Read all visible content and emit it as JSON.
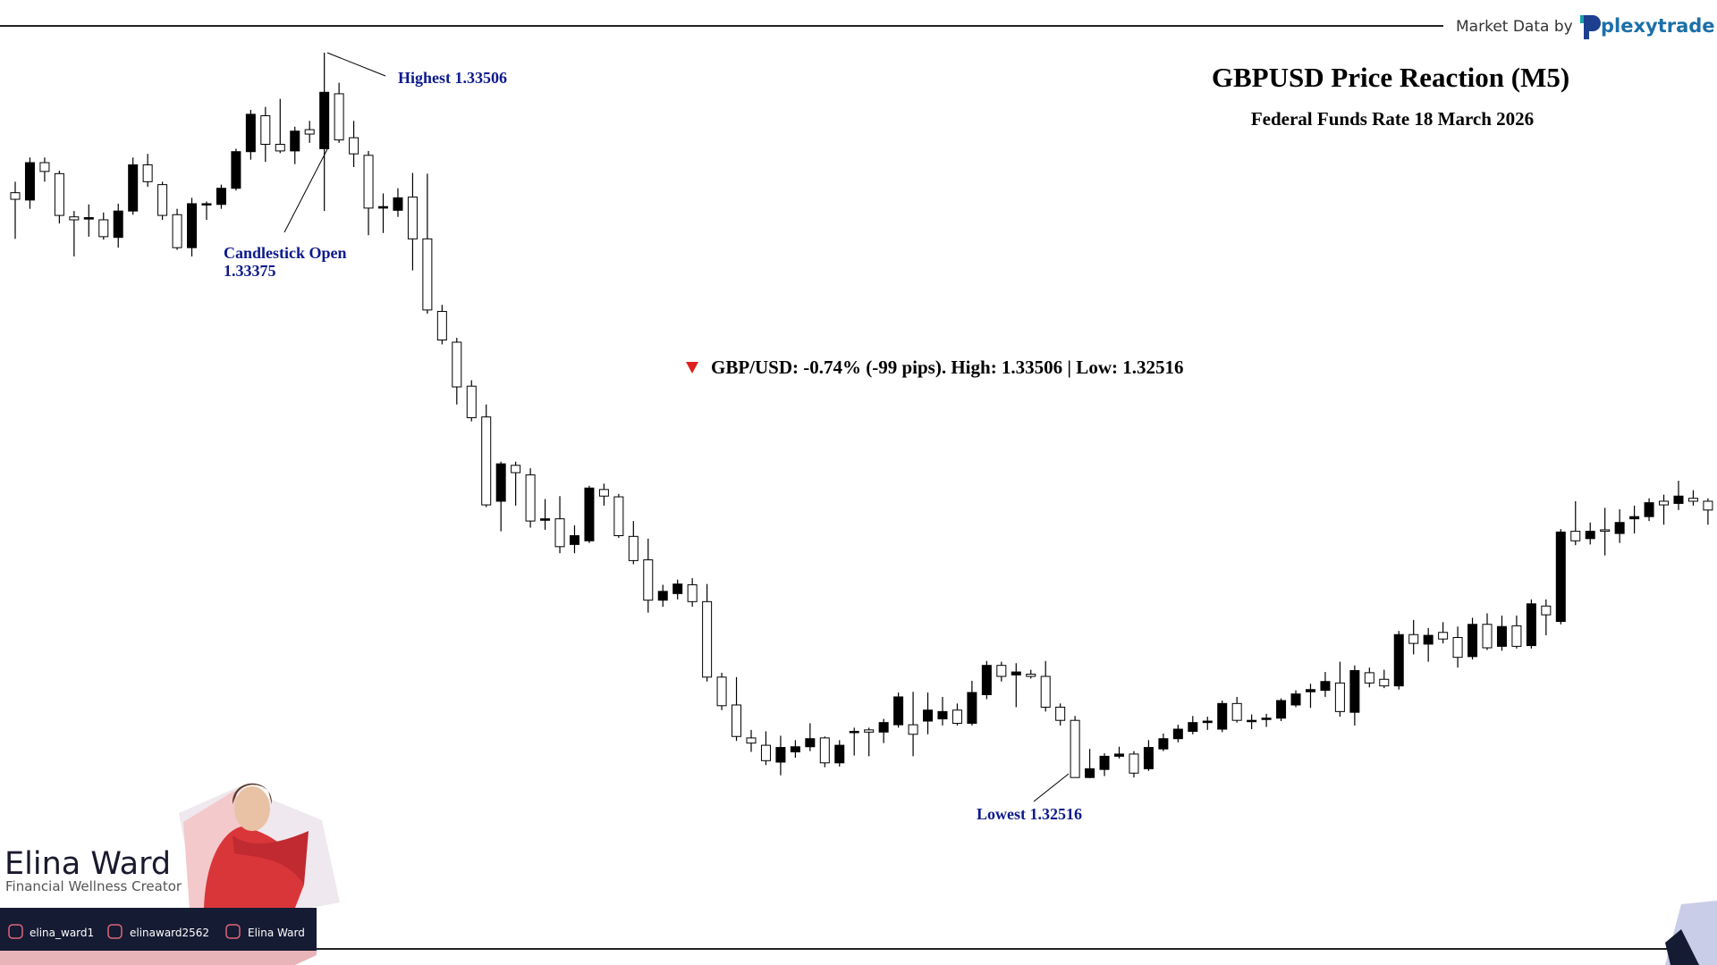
{
  "header": {
    "market_data": "Market Data by",
    "logo": "plexytrade"
  },
  "branding": {
    "name": "Elina Ward",
    "tagline": "Financial Wellness Creator",
    "socials": [
      "elina_ward1",
      "elinaward2562",
      "Elina Ward"
    ]
  },
  "chart_data": {
    "type": "candlestick",
    "title": "GBPUSD Price Reaction (M5)",
    "subtitle": "Federal Funds Rate 18 March 2026",
    "summary": "GBP/USD: -0.74% (-99 pips). High: 1.33506 | Low: 1.32516",
    "summary_color": "#e02020",
    "up_color": "#000000",
    "down_color": "#ffffff",
    "wick_color": "#000000",
    "annotations": [
      {
        "label": "Highest",
        "value": 1.33506
      },
      {
        "label": "Candlestick Open",
        "value": 1.33375
      },
      {
        "label": "Lowest",
        "value": 1.32516
      }
    ],
    "open": [
      1.33315,
      1.33305,
      1.33356,
      1.33341,
      1.33282,
      1.33279,
      1.33278,
      1.33254,
      1.3329,
      1.33353,
      1.33326,
      1.33285,
      1.3324,
      1.33299,
      1.33299,
      1.33321,
      1.33371,
      1.3342,
      1.33381,
      1.33372,
      1.33401,
      1.33375,
      1.3345,
      1.3339,
      1.33366,
      1.33294,
      1.33291,
      1.33309,
      1.33252,
      1.33153,
      1.33111,
      1.33051,
      1.33009,
      1.32894,
      1.32943,
      1.3293,
      1.32868,
      1.3287,
      1.32835,
      1.3284,
      1.3291,
      1.329,
      1.32846,
      1.32814,
      1.32759,
      1.32768,
      1.3278,
      1.32757,
      1.32654,
      1.32616,
      1.32571,
      1.32561,
      1.32538,
      1.32552,
      1.32559,
      1.32571,
      1.32537,
      1.32579,
      1.32582,
      1.32579,
      1.32589,
      1.32589,
      1.32594,
      1.32597,
      1.32609,
      1.32591,
      1.3263,
      1.3267,
      1.32657,
      1.32658,
      1.32655,
      1.32613,
      1.32595,
      1.32517,
      1.32528,
      1.32546,
      1.32549,
      1.32529,
      1.32556,
      1.3257,
      1.3258,
      1.32592,
      1.32583,
      1.32618,
      1.32594,
      1.32597,
      1.32598,
      1.32616,
      1.32634,
      1.32636,
      1.32646,
      1.32606,
      1.3266,
      1.32651,
      1.32642,
      1.32712,
      1.32699,
      1.32715,
      1.32708,
      1.32682,
      1.32726,
      1.32696,
      1.32724,
      1.32697,
      1.32751,
      1.3273,
      1.32853,
      1.32843,
      1.32855,
      1.3285,
      1.3287,
      1.32873,
      1.32894,
      1.32891,
      1.32898,
      1.32894
    ],
    "high": [
      1.3333,
      1.33363,
      1.33363,
      1.33345,
      1.3329,
      1.33299,
      1.33288,
      1.333,
      1.33363,
      1.33368,
      1.3333,
      1.33293,
      1.33308,
      1.33303,
      1.33326,
      1.33375,
      1.33428,
      1.33432,
      1.33443,
      1.33405,
      1.33413,
      1.33506,
      1.33465,
      1.33413,
      1.33372,
      1.33314,
      1.33321,
      1.33342,
      1.33341,
      1.33162,
      1.33117,
      1.33059,
      1.33026,
      1.32948,
      1.32948,
      1.32939,
      1.32897,
      1.32901,
      1.32861,
      1.32915,
      1.32918,
      1.32904,
      1.32867,
      1.32843,
      1.3278,
      1.32787,
      1.32789,
      1.32781,
      1.3266,
      1.32654,
      1.32582,
      1.3258,
      1.32574,
      1.32568,
      1.32591,
      1.32573,
      1.32568,
      1.32585,
      1.32585,
      1.32597,
      1.32633,
      1.32634,
      1.32633,
      1.32627,
      1.32618,
      1.32649,
      1.32676,
      1.32675,
      1.32673,
      1.32664,
      1.32676,
      1.32618,
      1.32601,
      1.32556,
      1.3255,
      1.32559,
      1.32553,
      1.32568,
      1.32577,
      1.32589,
      1.32601,
      1.326,
      1.32622,
      1.32627,
      1.32603,
      1.32604,
      1.32625,
      1.32636,
      1.32645,
      1.32661,
      1.32675,
      1.3267,
      1.32667,
      1.32664,
      1.32717,
      1.32732,
      1.32721,
      1.32729,
      1.32723,
      1.32735,
      1.32741,
      1.32738,
      1.32738,
      1.3276,
      1.3276,
      1.32856,
      1.32894,
      1.32865,
      1.32885,
      1.32883,
      1.32888,
      1.32898,
      1.32903,
      1.32922,
      1.32909,
      1.32898
    ],
    "low": [
      1.33252,
      1.33293,
      1.3333,
      1.33273,
      1.33228,
      1.33255,
      1.33251,
      1.3324,
      1.33285,
      1.33323,
      1.33278,
      1.33237,
      1.33228,
      1.33278,
      1.33293,
      1.33318,
      1.3336,
      1.33357,
      1.33369,
      1.33354,
      1.33383,
      1.3329,
      1.33383,
      1.3335,
      1.33257,
      1.3326,
      1.33282,
      1.33209,
      1.3315,
      1.33108,
      1.33026,
      1.33003,
      1.32886,
      1.32853,
      1.32888,
      1.32858,
      1.32855,
      1.32823,
      1.32823,
      1.32837,
      1.32888,
      1.32844,
      1.32808,
      1.32742,
      1.3275,
      1.3276,
      1.3275,
      1.32648,
      1.32609,
      1.32567,
      1.32552,
      1.32534,
      1.3252,
      1.32544,
      1.32553,
      1.32531,
      1.32532,
      1.32547,
      1.32546,
      1.32564,
      1.32585,
      1.32546,
      1.32576,
      1.32588,
      1.32588,
      1.32588,
      1.32624,
      1.32648,
      1.32613,
      1.32652,
      1.32607,
      1.32588,
      1.32517,
      1.32516,
      1.32519,
      1.32543,
      1.32517,
      1.32526,
      1.32553,
      1.32565,
      1.32576,
      1.32582,
      1.32579,
      1.32592,
      1.32583,
      1.32586,
      1.32594,
      1.32613,
      1.32612,
      1.32627,
      1.326,
      1.32588,
      1.3264,
      1.32639,
      1.32637,
      1.32685,
      1.32675,
      1.327,
      1.32667,
      1.32678,
      1.32691,
      1.3269,
      1.32693,
      1.32693,
      1.32711,
      1.32726,
      1.32834,
      1.32835,
      1.3282,
      1.32837,
      1.3285,
      1.32867,
      1.32862,
      1.32882,
      1.32888,
      1.32862
    ],
    "close": [
      1.33306,
      1.33356,
      1.33344,
      1.33284,
      1.33278,
      1.33281,
      1.33255,
      1.3329,
      1.33353,
      1.3333,
      1.33284,
      1.3324,
      1.333,
      1.333,
      1.33321,
      1.33371,
      1.33422,
      1.33381,
      1.33372,
      1.33399,
      1.33395,
      1.33452,
      1.33387,
      1.33368,
      1.33294,
      1.33296,
      1.33308,
      1.33252,
      1.33155,
      1.33114,
      1.3305,
      1.33008,
      1.32889,
      1.32945,
      1.32933,
      1.32867,
      1.3287,
      1.32832,
      1.32847,
      1.32912,
      1.32901,
      1.32847,
      1.32813,
      1.32759,
      1.32771,
      1.32781,
      1.32757,
      1.32654,
      1.32615,
      1.32573,
      1.32564,
      1.3254,
      1.32558,
      1.32559,
      1.3257,
      1.32537,
      1.32561,
      1.3258,
      1.32579,
      1.32592,
      1.32627,
      1.32576,
      1.32609,
      1.32607,
      1.32591,
      1.32633,
      1.3267,
      1.32655,
      1.32661,
      1.32655,
      1.32613,
      1.32595,
      1.32517,
      1.32529,
      1.32546,
      1.32549,
      1.32523,
      1.32558,
      1.3257,
      1.32583,
      1.32592,
      1.32594,
      1.32618,
      1.32595,
      1.32595,
      1.32598,
      1.32622,
      1.32631,
      1.32637,
      1.32648,
      1.32607,
      1.32663,
      1.32646,
      1.32642,
      1.32712,
      1.327,
      1.32711,
      1.32706,
      1.32681,
      1.32726,
      1.32694,
      1.32723,
      1.32696,
      1.32754,
      1.32739,
      1.32852,
      1.3284,
      1.32853,
      1.32853,
      1.32865,
      1.32873,
      1.32892,
      1.32889,
      1.32901,
      1.32894,
      1.32882
    ]
  }
}
